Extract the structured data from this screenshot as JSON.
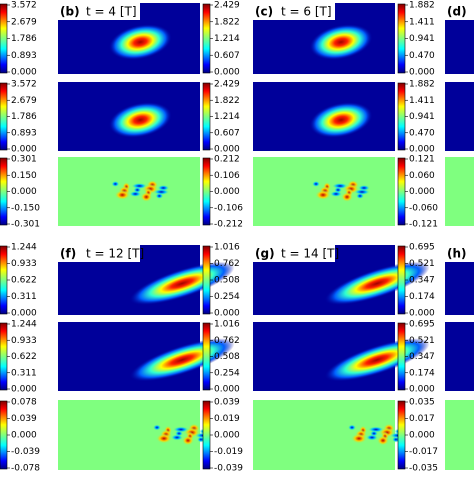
{
  "figure": {
    "panels": [
      {
        "label": "(b)",
        "title": "t = 4 [T]"
      },
      {
        "label": "(c)",
        "title": "t = 6 [T]"
      },
      {
        "label": "(d)"
      },
      {
        "label": "(f)",
        "title": "t = 12 [T]"
      },
      {
        "label": "(g)",
        "title": "t = 14 [T]"
      },
      {
        "label": "(h)"
      }
    ],
    "rows": [
      {
        "colorbars": [
          [
            "3.572",
            "2.679",
            "1.786",
            "0.893",
            "0.000"
          ],
          [
            "2.429",
            "1.822",
            "1.214",
            "0.607",
            "0.000"
          ],
          [
            "1.882",
            "1.411",
            "0.941",
            "0.470",
            "0.000"
          ]
        ]
      },
      {
        "colorbars": [
          [
            "3.572",
            "2.679",
            "1.786",
            "0.893",
            "0.000"
          ],
          [
            "2.429",
            "1.822",
            "1.214",
            "0.607",
            "0.000"
          ],
          [
            "1.882",
            "1.411",
            "0.941",
            "0.470",
            "0.000"
          ]
        ]
      },
      {
        "colorbars": [
          [
            "0.301",
            "0.150",
            "0.000",
            "-0.150",
            "-0.301"
          ],
          [
            "0.212",
            "0.106",
            "0.000",
            "-0.106",
            "-0.212"
          ],
          [
            "0.121",
            "0.060",
            "0.000",
            "-0.060",
            "-0.121"
          ]
        ]
      },
      {
        "colorbars": [
          [
            "1.244",
            "0.933",
            "0.622",
            "0.311",
            "0.000"
          ],
          [
            "1.016",
            "0.762",
            "0.508",
            "0.254",
            "0.000"
          ],
          [
            "0.695",
            "0.521",
            "0.347",
            "0.174",
            "0.000"
          ]
        ]
      },
      {
        "colorbars": [
          [
            "1.244",
            "0.933",
            "0.622",
            "0.311",
            "0.000"
          ],
          [
            "1.016",
            "0.762",
            "0.508",
            "0.254",
            "0.000"
          ],
          [
            "0.695",
            "0.521",
            "0.347",
            "0.174",
            "0.000"
          ]
        ]
      },
      {
        "colorbars": [
          [
            "0.078",
            "0.039",
            "0.000",
            "-0.039",
            "-0.078"
          ],
          [
            "0.039",
            "0.019",
            "0.000",
            "-0.019",
            "-0.039"
          ],
          [
            "0.035",
            "0.017",
            "0.000",
            "-0.017",
            "-0.035"
          ]
        ]
      }
    ]
  }
}
